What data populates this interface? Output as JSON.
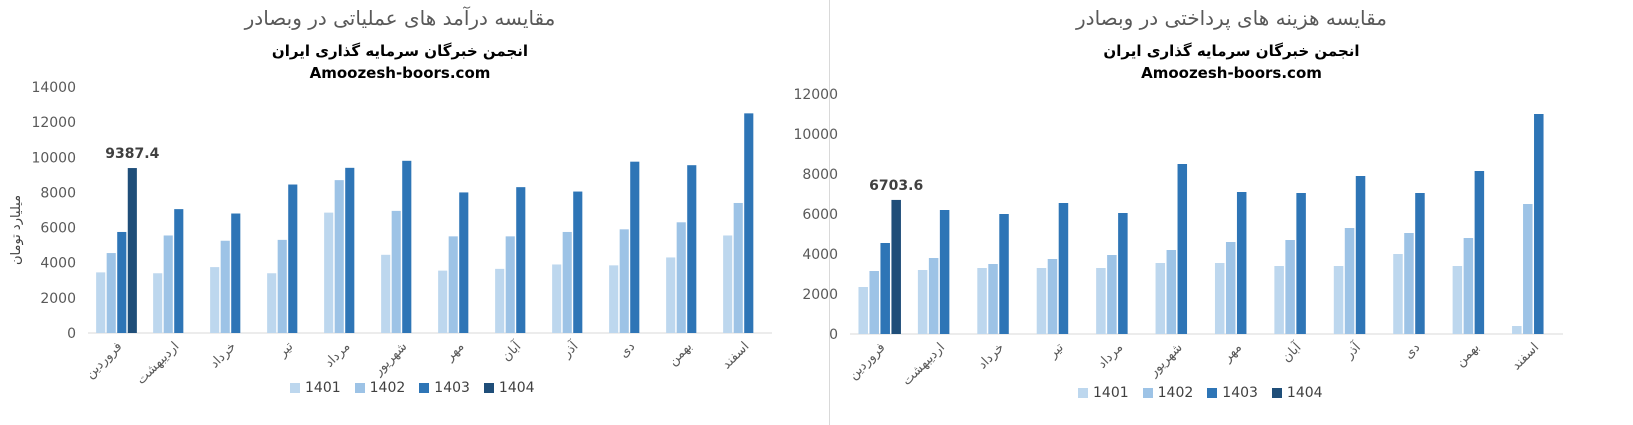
{
  "colors": {
    "1401": "#bdd7ee",
    "1402": "#9dc3e6",
    "1403": "#2e75b6",
    "1404": "#1f4e79"
  },
  "chart_data": [
    {
      "type": "bar",
      "title": "مقایسه درآمد های عملیاتی در وبصادر",
      "subtitle": "انجمن خبرگان سرمایه گذاری ایران",
      "source": "Amoozesh-boors.com",
      "ylabel": "میلیارد تومان",
      "ylim": [
        0,
        14000
      ],
      "yticks": [
        0,
        2000,
        4000,
        6000,
        8000,
        10000,
        12000,
        14000
      ],
      "categories": [
        "فروردین",
        "اردیبهشت",
        "خرداد",
        "تیر",
        "مرداد",
        "شهریور",
        "مهر",
        "آبان",
        "آذر",
        "دی",
        "بهمن",
        "اسفند"
      ],
      "series": [
        {
          "name": "1401",
          "values": [
            3450,
            3400,
            3750,
            3400,
            6850,
            4450,
            3550,
            3650,
            3900,
            3850,
            4300,
            5550
          ]
        },
        {
          "name": "1402",
          "values": [
            4550,
            5550,
            5250,
            5300,
            8700,
            6950,
            5500,
            5500,
            5750,
            5900,
            6300,
            7400
          ]
        },
        {
          "name": "1403",
          "values": [
            5750,
            7050,
            6800,
            8450,
            9400,
            9800,
            8000,
            8300,
            8050,
            9750,
            9550,
            12500
          ]
        },
        {
          "name": "1404",
          "values": [
            9387.4,
            null,
            null,
            null,
            null,
            null,
            null,
            null,
            null,
            null,
            null,
            null
          ]
        }
      ],
      "annotation": {
        "label": "9387.4",
        "category": "فروردین",
        "series": "1404"
      },
      "legend": "bottom"
    },
    {
      "type": "bar",
      "title": "مقایسه هزینه های پرداختی در وبصادر",
      "subtitle": "انجمن خبرگان سرمایه گذاری ایران",
      "source": "Amoozesh-boors.com",
      "ylabel": "",
      "ylim": [
        0,
        12000
      ],
      "yticks": [
        0,
        2000,
        4000,
        6000,
        8000,
        10000,
        12000
      ],
      "categories": [
        "فروردین",
        "اردیبهشت",
        "خرداد",
        "تیر",
        "مرداد",
        "شهریور",
        "مهر",
        "آبان",
        "آذر",
        "دی",
        "بهمن",
        "اسفند"
      ],
      "series": [
        {
          "name": "1401",
          "values": [
            2350,
            3200,
            3300,
            3300,
            3300,
            3550,
            3550,
            3400,
            3400,
            4000,
            3400,
            400
          ]
        },
        {
          "name": "1402",
          "values": [
            3150,
            3800,
            3500,
            3750,
            3950,
            4200,
            4600,
            4700,
            5300,
            5050,
            4800,
            6500
          ]
        },
        {
          "name": "1403",
          "values": [
            4550,
            6200,
            6000,
            6550,
            6050,
            8500,
            7100,
            7050,
            7900,
            7050,
            8150,
            11000
          ]
        },
        {
          "name": "1404",
          "values": [
            6703.6,
            null,
            null,
            null,
            null,
            null,
            null,
            null,
            null,
            null,
            null,
            null
          ]
        }
      ],
      "annotation": {
        "label": "6703.6",
        "category": "فروردین",
        "series": "1404"
      },
      "legend": "bottom"
    }
  ]
}
